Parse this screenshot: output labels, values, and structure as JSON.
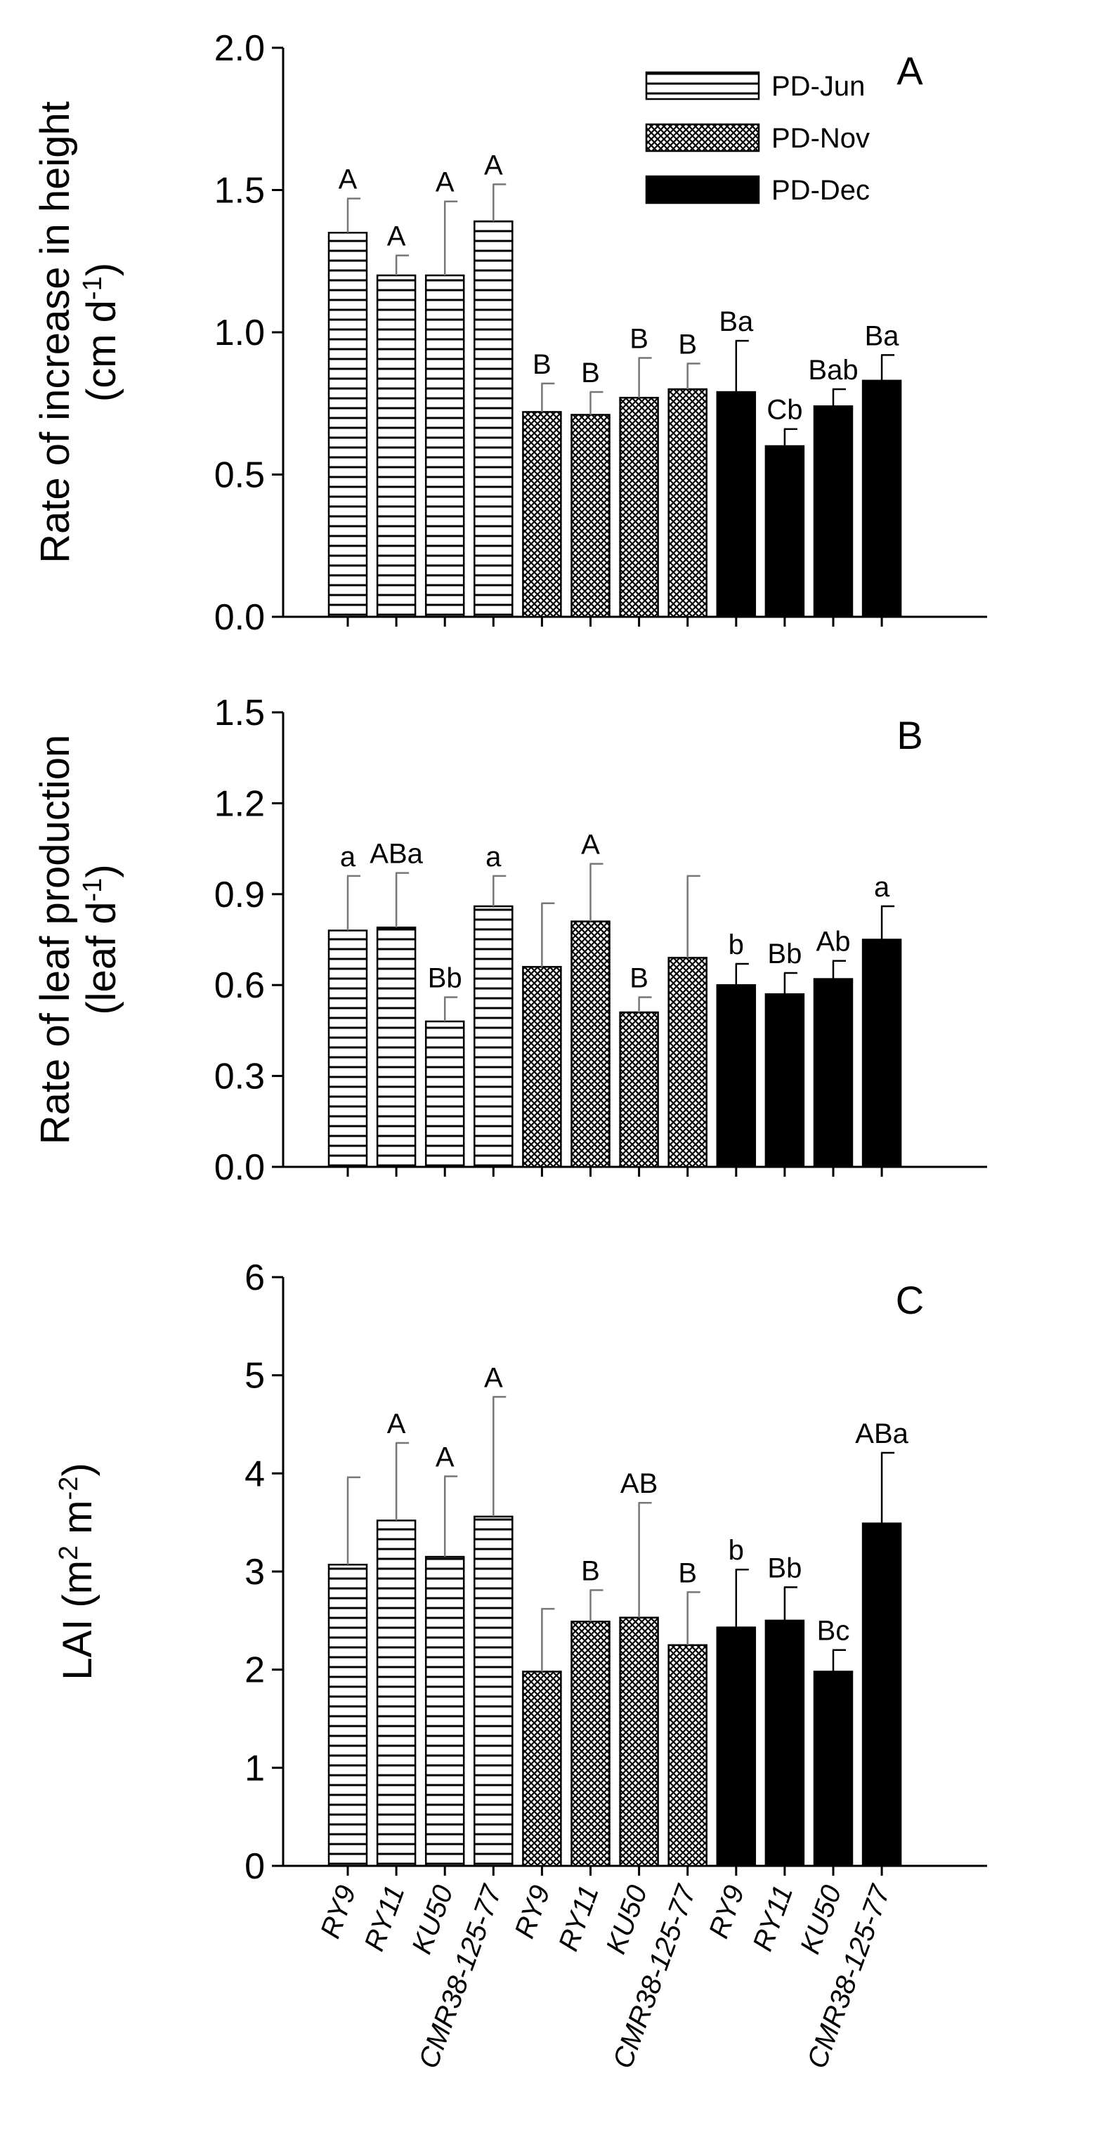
{
  "chart_data": [
    {
      "id": "A",
      "type": "bar",
      "panel_label": "A",
      "ylabel_line1": "Rate of increase in height",
      "ylabel_line2": "(cm d",
      "ylabel_sup": "-1",
      "ylabel_close": ")",
      "ylim": [
        0,
        2.0
      ],
      "yticks": [
        "0.0",
        "0.5",
        "1.0",
        "1.5",
        "2.0"
      ],
      "ytick_values": [
        0,
        0.5,
        1.0,
        1.5,
        2.0
      ],
      "values": [
        1.35,
        1.2,
        1.2,
        1.39,
        0.72,
        0.71,
        0.77,
        0.8,
        0.79,
        0.6,
        0.74,
        0.83
      ],
      "errors": [
        0.12,
        0.07,
        0.26,
        0.13,
        0.1,
        0.08,
        0.14,
        0.09,
        0.18,
        0.06,
        0.06,
        0.09
      ],
      "labels": [
        "A",
        "A",
        "A",
        "A",
        "B",
        "B",
        "B",
        "B",
        "Ba",
        "Cb",
        "Bab",
        "Ba"
      ]
    },
    {
      "id": "B",
      "type": "bar",
      "panel_label": "B",
      "ylabel_line1": "Rate of leaf production",
      "ylabel_line2": "(leaf d",
      "ylabel_sup": "-1",
      "ylabel_close": ")",
      "ylim": [
        0,
        1.5
      ],
      "yticks": [
        "0.0",
        "0.3",
        "0.6",
        "0.9",
        "1.2",
        "1.5"
      ],
      "ytick_values": [
        0,
        0.3,
        0.6,
        0.9,
        1.2,
        1.5
      ],
      "values": [
        0.78,
        0.79,
        0.48,
        0.86,
        0.66,
        0.81,
        0.51,
        0.69,
        0.6,
        0.57,
        0.62,
        0.75
      ],
      "errors": [
        0.18,
        0.18,
        0.08,
        0.1,
        0.21,
        0.19,
        0.05,
        0.27,
        0.07,
        0.07,
        0.06,
        0.11
      ],
      "labels": [
        "a",
        "ABa",
        "Bb",
        "a",
        "",
        "A",
        "B",
        "",
        "b",
        "Bb",
        "Ab",
        "a"
      ]
    },
    {
      "id": "C",
      "type": "bar",
      "panel_label": "C",
      "ylabel_line1": "LAI (m",
      "ylabel_sup1": "2",
      "ylabel_mid": " m",
      "ylabel_sup2": "-2",
      "ylabel_close": ")",
      "ylim": [
        0,
        6
      ],
      "yticks": [
        "0",
        "1",
        "2",
        "3",
        "4",
        "5",
        "6"
      ],
      "ytick_values": [
        0,
        1,
        2,
        3,
        4,
        5,
        6
      ],
      "values": [
        3.07,
        3.52,
        3.15,
        3.56,
        1.98,
        2.49,
        2.53,
        2.25,
        2.43,
        2.5,
        1.98,
        3.49
      ],
      "errors": [
        0.89,
        0.79,
        0.82,
        1.22,
        0.64,
        0.32,
        1.17,
        0.54,
        0.59,
        0.34,
        0.22,
        0.72
      ],
      "labels": [
        "",
        "A",
        "A",
        "A",
        "",
        "B",
        "AB",
        "B",
        "b",
        "Bb",
        "Bc",
        "ABa"
      ]
    }
  ],
  "categories": [
    "RY9",
    "RY11",
    "KU50",
    "CMR38-125-77",
    "RY9",
    "RY11",
    "KU50",
    "CMR38-125-77",
    "RY9",
    "RY11",
    "KU50",
    "CMR38-125-77"
  ],
  "groups": [
    "PD-Jun",
    "PD-Jun",
    "PD-Jun",
    "PD-Jun",
    "PD-Nov",
    "PD-Nov",
    "PD-Nov",
    "PD-Nov",
    "PD-Dec",
    "PD-Dec",
    "PD-Dec",
    "PD-Dec"
  ],
  "legend": [
    {
      "name": "PD-Jun",
      "pattern": "horizontal-lines"
    },
    {
      "name": "PD-Nov",
      "pattern": "crosshatch"
    },
    {
      "name": "PD-Dec",
      "pattern": "solid-black"
    }
  ]
}
